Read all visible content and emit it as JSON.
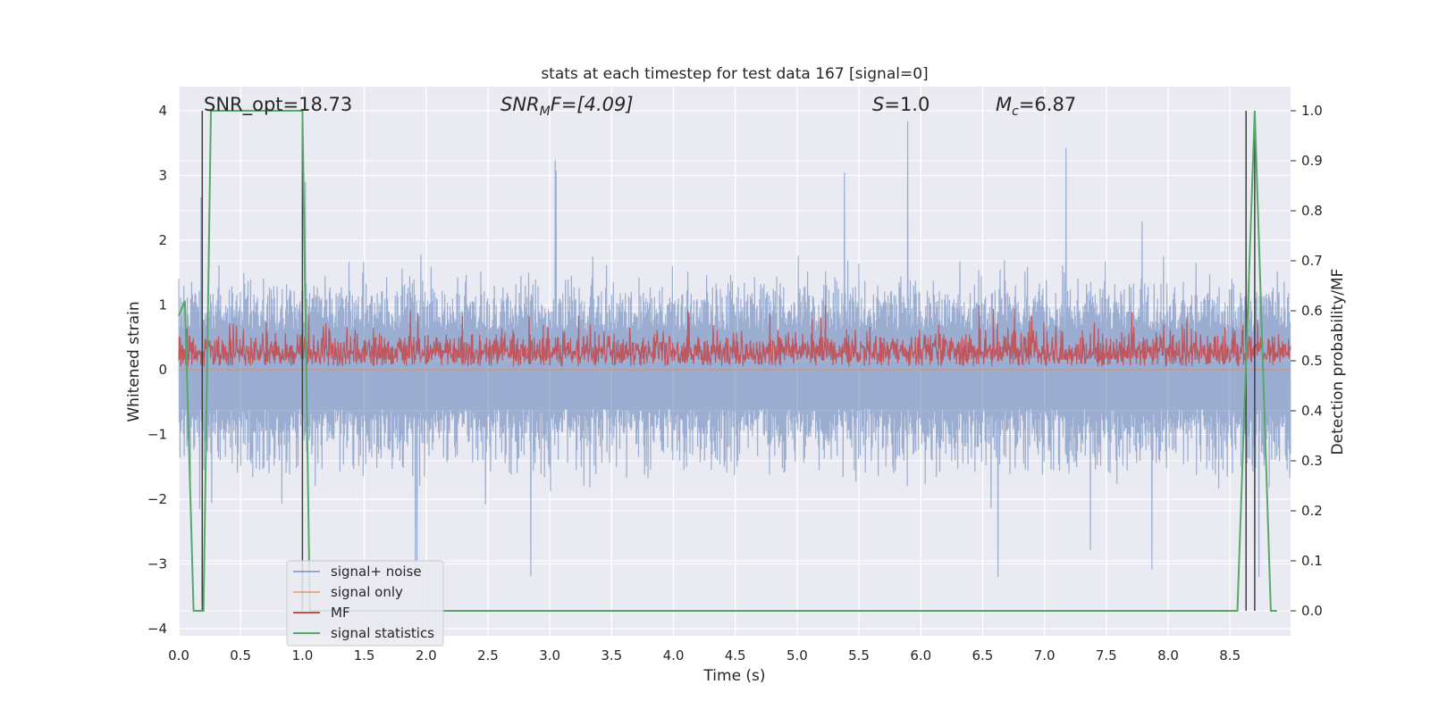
{
  "chart_data": {
    "type": "line",
    "title": "stats at each timestep for test data 167 [signal=0]",
    "xlabel": "Time (s)",
    "ylabel": "Whitened strain",
    "y2label": "Detection probability/MF",
    "xlim": [
      0.0,
      8.99
    ],
    "ylim": [
      -4.0,
      4.0
    ],
    "y2lim": [
      0.0,
      1.0
    ],
    "xticks": [
      "0.0",
      "0.5",
      "1.0",
      "1.5",
      "2.0",
      "2.5",
      "3.0",
      "3.5",
      "4.0",
      "4.5",
      "5.0",
      "5.5",
      "6.0",
      "6.5",
      "7.0",
      "7.5",
      "8.0",
      "8.5"
    ],
    "xtick_values": [
      0.0,
      0.5,
      1.0,
      1.5,
      2.0,
      2.5,
      3.0,
      3.5,
      4.0,
      4.5,
      5.0,
      5.5,
      6.0,
      6.5,
      7.0,
      7.5,
      8.0,
      8.5
    ],
    "yticks": [
      "4",
      "3",
      "2",
      "1",
      "0",
      "−1",
      "−2",
      "−3",
      "−4"
    ],
    "ytick_values": [
      4,
      3,
      2,
      1,
      0,
      -1,
      -2,
      -3,
      -4
    ],
    "y2ticks": [
      "1.0",
      "0.9",
      "0.8",
      "0.7",
      "0.6",
      "0.5",
      "0.4",
      "0.3",
      "0.2",
      "0.1",
      "0.0"
    ],
    "y2tick_values": [
      1.0,
      0.9,
      0.8,
      0.7,
      0.6,
      0.5,
      0.4,
      0.3,
      0.2,
      0.1,
      0.0
    ],
    "grid": true,
    "legend_placement": "lower-left",
    "annotations": {
      "snr_opt": "SNR_opt=18.73",
      "snr_mf_base": "SNR",
      "snr_mf_sub": "M",
      "snr_mf_rest": "F=[4.09]",
      "s_var": "S",
      "s_rest": "=1.0",
      "mc_base": "M",
      "mc_sub": "c",
      "mc_rest": "=6.87"
    },
    "series": [
      {
        "name": "signal+ noise",
        "color": "#4c72b0",
        "axis": "left",
        "description_values": "noise-like, mostly within [-1.4, 1.0], peaks to about +4.0 and -3.2",
        "approx_envelope": {
          "upper": 1.0,
          "lower": -1.4,
          "max": 4.0,
          "min": -3.2
        }
      },
      {
        "name": "signal only",
        "color": "#dd8452",
        "axis": "left",
        "constant": 0.0
      },
      {
        "name": "MF",
        "color": "#c44e52",
        "axis": "left",
        "approx_envelope": {
          "upper": 0.6,
          "lower": 0.0,
          "max": 1.0
        }
      },
      {
        "name": "signal statistics",
        "color": "#55a868",
        "axis": "right",
        "x": [
          0.0,
          0.05,
          0.12,
          0.2,
          0.26,
          1.0,
          1.06,
          8.5,
          8.56,
          8.7,
          8.83,
          8.88
        ],
        "values": [
          0.59,
          0.62,
          0.0,
          0.0,
          1.0,
          1.0,
          0.0,
          0.0,
          0.0,
          1.0,
          0.0,
          0.0
        ]
      }
    ],
    "vlines": [
      0.19,
      1.0,
      8.63,
      8.7
    ],
    "vline_color": "#404040"
  }
}
